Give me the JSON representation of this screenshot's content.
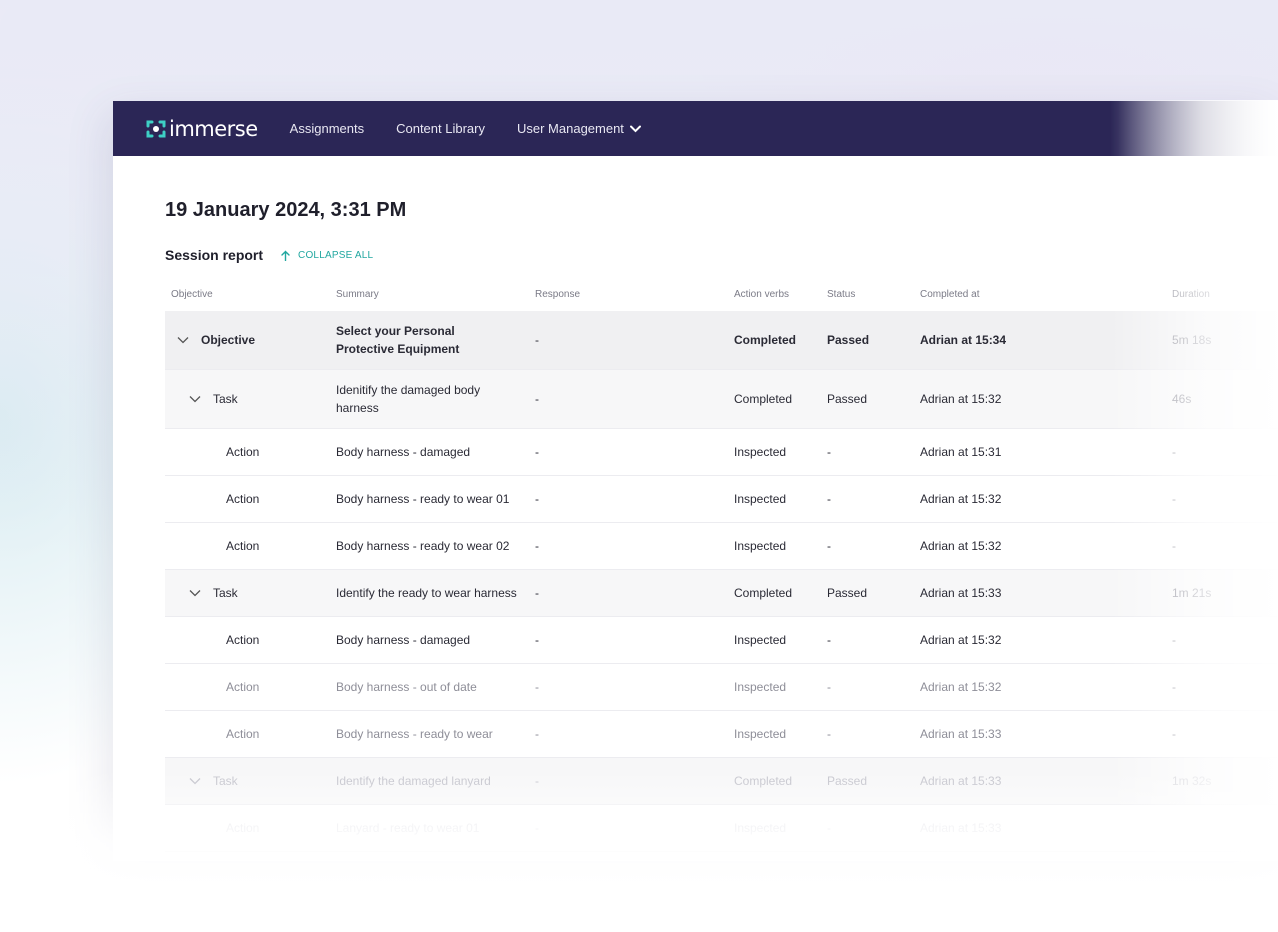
{
  "nav": {
    "brand": "immerse",
    "items": [
      "Assignments",
      "Content Library"
    ],
    "dropdown_label": "User Management"
  },
  "page": {
    "title": "19 January 2024, 3:31 PM",
    "section_title": "Session report",
    "collapse_label": "COLLAPSE ALL"
  },
  "table": {
    "headers": [
      "Objective",
      "Summary",
      "Response",
      "Action verbs",
      "Status",
      "Completed at",
      "Duration"
    ],
    "rows": [
      {
        "type": "Objective",
        "summary": "Select your Personal Protective Equipment",
        "response": "-",
        "verb": "Completed",
        "status": "Passed",
        "completed": "Adrian at 15:34",
        "duration": "5m 18s"
      },
      {
        "type": "Task",
        "summary": "Idenitify the damaged body harness",
        "response": "-",
        "verb": "Completed",
        "status": "Passed",
        "completed": "Adrian at 15:32",
        "duration": "46s"
      },
      {
        "type": "Action",
        "summary": "Body harness - damaged",
        "response": "-",
        "verb": "Inspected",
        "status": "-",
        "completed": "Adrian at 15:31",
        "duration": "-"
      },
      {
        "type": "Action",
        "summary": "Body harness - ready to wear 01",
        "response": "-",
        "verb": "Inspected",
        "status": "-",
        "completed": "Adrian at 15:32",
        "duration": "-"
      },
      {
        "type": "Action",
        "summary": "Body harness - ready to wear 02",
        "response": "-",
        "verb": "Inspected",
        "status": "-",
        "completed": "Adrian at 15:32",
        "duration": "-"
      },
      {
        "type": "Task",
        "summary": "Identify the ready to wear harness",
        "response": "-",
        "verb": "Completed",
        "status": "Passed",
        "completed": "Adrian at 15:33",
        "duration": "1m 21s"
      },
      {
        "type": "Action",
        "summary": "Body harness - damaged",
        "response": "-",
        "verb": "Inspected",
        "status": "-",
        "completed": "Adrian at 15:32",
        "duration": "-"
      },
      {
        "type": "Action",
        "summary": "Body harness - out of date",
        "response": "-",
        "verb": "Inspected",
        "status": "-",
        "completed": "Adrian at 15:32",
        "duration": "-"
      },
      {
        "type": "Action",
        "summary": "Body harness - ready to wear",
        "response": "-",
        "verb": "Inspected",
        "status": "-",
        "completed": "Adrian at 15:33",
        "duration": "-"
      },
      {
        "type": "Task",
        "summary": "Identify the damaged lanyard",
        "response": "-",
        "verb": "Completed",
        "status": "Passed",
        "completed": "Adrian at 15:33",
        "duration": "1m 32s"
      },
      {
        "type": "Action",
        "summary": "Lanyard - ready to wear 01",
        "response": "-",
        "verb": "Inspected",
        "status": "-",
        "completed": "Adrian at 15:33",
        "duration": ""
      }
    ]
  },
  "colors": {
    "nav_bg": "#2b2656",
    "accent": "#21a7a0",
    "objective_row_bg": "#f0f0f2",
    "task_row_bg": "#f7f7f8"
  },
  "icons": {
    "logo": "immerse-logo-icon",
    "dropdown": "chevron-down-icon",
    "collapse": "arrow-up-icon",
    "row_toggle": "chevron-down-icon"
  }
}
